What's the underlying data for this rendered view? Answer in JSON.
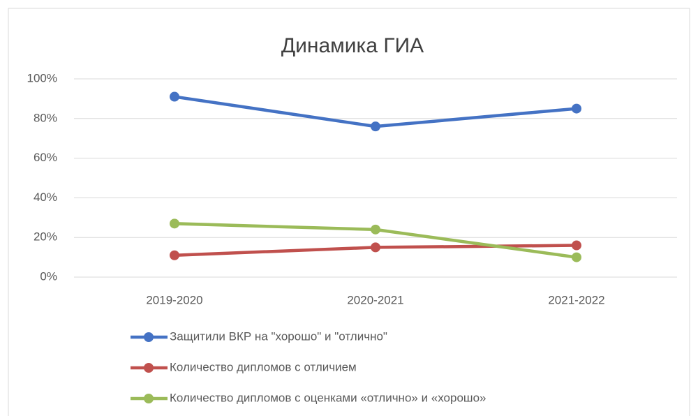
{
  "chart_data": {
    "type": "line",
    "title": "Динамика ГИА",
    "categories": [
      "2019-2020",
      "2020-2021",
      "2021-2022"
    ],
    "series": [
      {
        "name": "Защитили ВКР на \"хорошо\" и \"отлично\"",
        "color": "#4472c4",
        "values": [
          91,
          76,
          85
        ]
      },
      {
        "name": "Количество дипломов с отличием",
        "color": "#c0504d",
        "values": [
          11,
          15,
          16
        ]
      },
      {
        "name": "Количество дипломов с оценками «отлично» и «хорошо»",
        "color": "#9bbb59",
        "values": [
          27,
          24,
          10
        ]
      }
    ],
    "ylim": [
      0,
      100
    ],
    "yticks": [
      {
        "value": 0,
        "label": "0%"
      },
      {
        "value": 20,
        "label": "20%"
      },
      {
        "value": 40,
        "label": "40%"
      },
      {
        "value": 60,
        "label": "60%"
      },
      {
        "value": 80,
        "label": "80%"
      },
      {
        "value": 100,
        "label": "100%"
      }
    ],
    "grid": true,
    "legend": "bottom"
  }
}
